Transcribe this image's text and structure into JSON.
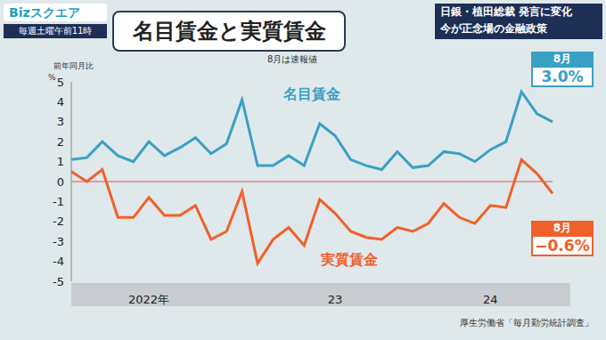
{
  "screen": {
    "logo": "Bizスクエア",
    "schedule": "毎週土曜午前11時",
    "headline": [
      "日銀・植田総裁 発言に変化",
      "今が正念場の金融政策"
    ],
    "source": "厚生労働省「毎月勤労統計調査」"
  },
  "chart_data": {
    "type": "line",
    "title": "名目賃金と実質賃金",
    "subtitle": "8月は速報値",
    "y_label": "前年同月比",
    "y_unit": "%",
    "categories": [
      null,
      null,
      null,
      null,
      null,
      "2022年",
      null,
      null,
      null,
      null,
      null,
      null,
      null,
      null,
      null,
      null,
      null,
      "23",
      null,
      null,
      null,
      null,
      null,
      null,
      null,
      null,
      null,
      "24",
      null,
      null,
      null,
      null
    ],
    "series": [
      {
        "name": "名目賃金",
        "color": "#3aa0c4",
        "values": [
          1.1,
          1.2,
          2.0,
          1.3,
          1.0,
          2.0,
          1.3,
          1.7,
          2.2,
          1.4,
          1.9,
          4.1,
          0.8,
          0.8,
          1.3,
          0.8,
          2.9,
          2.3,
          1.1,
          0.8,
          0.6,
          1.5,
          0.7,
          0.8,
          1.5,
          1.4,
          1.0,
          1.6,
          2.0,
          4.5,
          3.4,
          3.0
        ]
      },
      {
        "name": "実質賃金",
        "color": "#f0602a",
        "values": [
          0.5,
          0.0,
          0.6,
          -1.8,
          -1.8,
          -0.8,
          -1.7,
          -1.7,
          -1.2,
          -2.9,
          -2.5,
          -0.5,
          -4.1,
          -2.9,
          -2.3,
          -3.2,
          -0.9,
          -1.6,
          -2.5,
          -2.8,
          -2.9,
          -2.3,
          -2.5,
          -2.1,
          -1.1,
          -1.8,
          -2.1,
          -1.2,
          -1.3,
          1.1,
          0.4,
          -0.6
        ]
      }
    ],
    "annotations": [
      {
        "series": "名目賃金",
        "text": "8月",
        "value_label": "3.0%"
      },
      {
        "series": "実質賃金",
        "text": "8月",
        "value_label": "−0.6%"
      }
    ],
    "ylim": [
      -5,
      5
    ],
    "yticks": [
      -5,
      -4,
      -3,
      -2,
      -1,
      0,
      1,
      2,
      3,
      4,
      5
    ],
    "reference_line": 0,
    "grid": false,
    "legend": "none"
  }
}
